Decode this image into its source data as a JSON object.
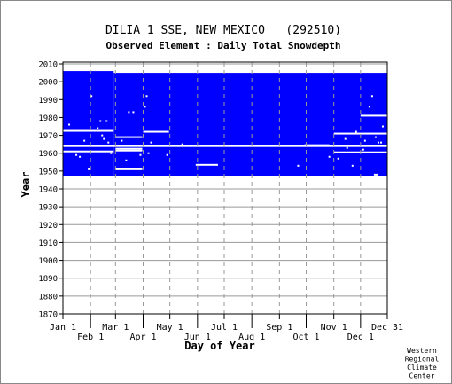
{
  "chart_data": {
    "type": "heatmap",
    "title": "DILIA 1 SSE, NEW MEXICO   (292510)",
    "subtitle": "Observed Element : Daily Total Snowdepth",
    "xlabel": "Day of Year",
    "ylabel": "Year",
    "ylim": [
      1870,
      2011
    ],
    "xlim_day": [
      1,
      365
    ],
    "x_ticks_top_row": [
      {
        "label": "Jan 1",
        "day": 1
      },
      {
        "label": "Mar 1",
        "day": 60
      },
      {
        "label": "May 1",
        "day": 121
      },
      {
        "label": "Jul 1",
        "day": 182
      },
      {
        "label": "Sep 1",
        "day": 244
      },
      {
        "label": "Nov 1",
        "day": 305
      },
      {
        "label": "Dec 31",
        "day": 365
      }
    ],
    "x_ticks_bottom_row": [
      {
        "label": "Feb 1",
        "day": 32
      },
      {
        "label": "Apr 1",
        "day": 91
      },
      {
        "label": "Jun 1",
        "day": 152
      },
      {
        "label": "Aug 1",
        "day": 213
      },
      {
        "label": "Oct 1",
        "day": 274
      },
      {
        "label": "Dec 1",
        "day": 335
      }
    ],
    "y_ticks": [
      2010,
      2000,
      1990,
      1980,
      1970,
      1960,
      1950,
      1940,
      1930,
      1920,
      1910,
      1900,
      1890,
      1880,
      1870
    ],
    "grid": true,
    "colors": {
      "data": "#0000ff",
      "grid": "#999999",
      "background": "#ffffff",
      "frame": "#000000"
    },
    "data_coverage": [
      {
        "day_start": 1,
        "day_end": 58,
        "year_start": 1947,
        "year_end": 2006
      },
      {
        "day_start": 58,
        "day_end": 365,
        "year_start": 1947,
        "year_end": 2005
      }
    ],
    "missing_segments": [
      {
        "day_start": 1,
        "day_end": 58,
        "year": 1972.5
      },
      {
        "day_start": 1,
        "day_end": 365,
        "year": 1964
      },
      {
        "day_start": 1,
        "day_end": 58,
        "year": 1961
      },
      {
        "day_start": 60,
        "day_end": 90,
        "year": 1969
      },
      {
        "day_start": 60,
        "day_end": 90,
        "year": 1962.5
      },
      {
        "day_start": 60,
        "day_end": 90,
        "year": 1961.5
      },
      {
        "day_start": 60,
        "day_end": 90,
        "year": 1951
      },
      {
        "day_start": 91,
        "day_end": 120,
        "year": 1972
      },
      {
        "day_start": 150,
        "day_end": 175,
        "year": 1953.5
      },
      {
        "day_start": 272,
        "day_end": 300,
        "year": 1964.5
      },
      {
        "day_start": 305,
        "day_end": 365,
        "year": 1971
      },
      {
        "day_start": 305,
        "day_end": 365,
        "year": 1960.5
      },
      {
        "day_start": 335,
        "day_end": 365,
        "year": 1981
      },
      {
        "day_start": 350,
        "day_end": 355,
        "year": 1948
      }
    ],
    "missing_points": [
      {
        "day": 8,
        "year": 1976
      },
      {
        "day": 16,
        "year": 1959
      },
      {
        "day": 20,
        "year": 1958
      },
      {
        "day": 25,
        "year": 1967
      },
      {
        "day": 30,
        "year": 1951
      },
      {
        "day": 33,
        "year": 1992
      },
      {
        "day": 40,
        "year": 1974
      },
      {
        "day": 43,
        "year": 1978
      },
      {
        "day": 45,
        "year": 1970
      },
      {
        "day": 47,
        "year": 1968
      },
      {
        "day": 50,
        "year": 1978
      },
      {
        "day": 52,
        "year": 1966
      },
      {
        "day": 55,
        "year": 1960
      },
      {
        "day": 67,
        "year": 1967
      },
      {
        "day": 72,
        "year": 1956
      },
      {
        "day": 75,
        "year": 1983
      },
      {
        "day": 80,
        "year": 1983
      },
      {
        "day": 88,
        "year": 1959
      },
      {
        "day": 93,
        "year": 1986
      },
      {
        "day": 95,
        "year": 1992
      },
      {
        "day": 97,
        "year": 1960
      },
      {
        "day": 100,
        "year": 1966
      },
      {
        "day": 118,
        "year": 1959
      },
      {
        "day": 135,
        "year": 1965
      },
      {
        "day": 265,
        "year": 1953
      },
      {
        "day": 300,
        "year": 1958
      },
      {
        "day": 310,
        "year": 1957
      },
      {
        "day": 318,
        "year": 1968
      },
      {
        "day": 330,
        "year": 1972
      },
      {
        "day": 340,
        "year": 1967
      },
      {
        "day": 345,
        "year": 1986
      },
      {
        "day": 348,
        "year": 1992
      },
      {
        "day": 352,
        "year": 1969
      },
      {
        "day": 355,
        "year": 1966
      },
      {
        "day": 358,
        "year": 1966
      },
      {
        "day": 360,
        "year": 1975
      },
      {
        "day": 326,
        "year": 1953
      },
      {
        "day": 338,
        "year": 1962
      },
      {
        "day": 320,
        "year": 1963
      }
    ],
    "credit_lines": [
      "Western",
      "Regional",
      "Climate",
      "Center"
    ]
  }
}
